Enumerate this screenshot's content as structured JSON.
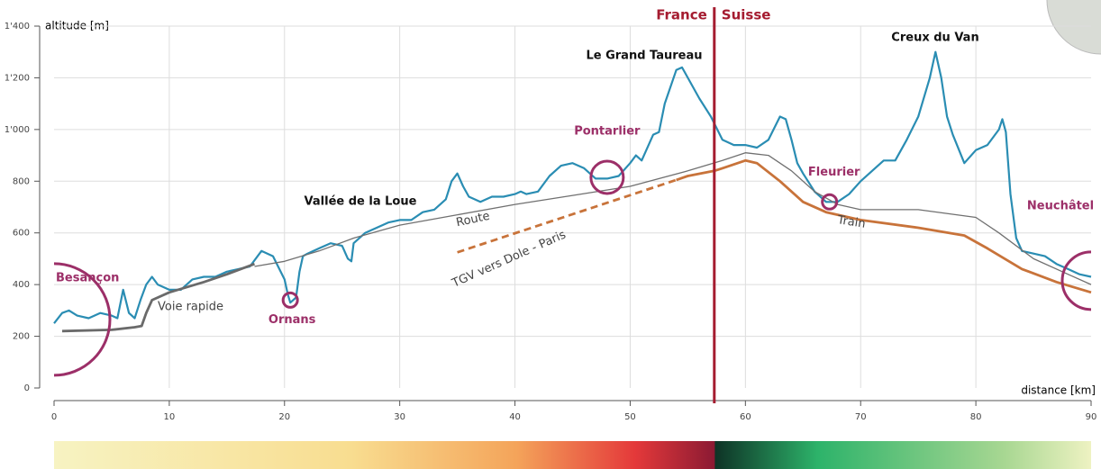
{
  "chart_data": {
    "type": "line",
    "y_label": "altitude [m]",
    "x_label": "distance [km]",
    "xlim": [
      0,
      90
    ],
    "ylim": [
      0,
      1400
    ],
    "xticks": [
      0,
      10,
      20,
      30,
      40,
      50,
      60,
      70,
      80,
      90
    ],
    "yticks": [
      0,
      200,
      400,
      600,
      800,
      {
        "value": 1000,
        "label": "1'000"
      },
      {
        "value": 1200,
        "label": "1'200"
      },
      {
        "value": 1400,
        "label": "1'400"
      }
    ],
    "grid": true,
    "series": [
      {
        "color": "#2a8db3",
        "x": [
          0,
          0.7,
          1.3,
          2,
          3,
          4,
          5,
          5.5,
          6,
          6.5,
          7,
          7.5,
          8,
          8.5,
          9,
          10,
          11,
          12,
          13,
          14,
          15,
          16,
          17,
          18,
          19,
          20,
          20.3,
          20.5,
          21,
          21.3,
          21.6,
          22,
          23,
          24,
          25,
          25.5,
          25.8,
          26,
          27,
          28,
          29,
          30,
          31,
          32,
          33,
          34,
          34.5,
          35,
          35.5,
          36,
          37,
          38,
          39,
          40,
          40.5,
          41,
          42,
          43,
          44,
          45,
          46,
          47,
          48,
          49,
          50,
          50.5,
          51,
          52,
          52.5,
          53,
          54,
          54.5,
          55,
          56,
          57,
          58,
          59,
          60,
          61,
          62,
          63,
          63.5,
          64,
          64.5,
          65,
          66,
          67,
          68,
          69,
          70,
          71,
          72,
          73,
          74,
          75,
          76,
          76.5,
          77,
          77.5,
          78,
          79,
          80,
          81,
          82,
          82.3,
          82.6,
          83,
          83.5,
          84,
          85,
          86,
          87,
          88,
          89,
          90
        ],
        "values": [
          250,
          290,
          300,
          280,
          270,
          290,
          280,
          270,
          380,
          290,
          270,
          340,
          400,
          430,
          400,
          380,
          380,
          420,
          430,
          430,
          450,
          460,
          470,
          530,
          510,
          420,
          360,
          330,
          350,
          450,
          510,
          520,
          540,
          560,
          550,
          500,
          490,
          560,
          600,
          620,
          640,
          650,
          650,
          680,
          690,
          730,
          800,
          830,
          780,
          740,
          720,
          740,
          740,
          750,
          760,
          750,
          760,
          820,
          860,
          870,
          850,
          810,
          810,
          820,
          870,
          900,
          880,
          980,
          990,
          1100,
          1230,
          1240,
          1200,
          1120,
          1050,
          960,
          940,
          940,
          930,
          960,
          1050,
          1040,
          960,
          870,
          830,
          760,
          720,
          720,
          750,
          800,
          840,
          880,
          880,
          960,
          1050,
          1200,
          1300,
          1200,
          1050,
          980,
          870,
          920,
          940,
          1000,
          1040,
          990,
          750,
          580,
          530,
          520,
          510,
          480,
          460,
          440,
          430
        ]
      },
      {
        "name": "Route",
        "color": "#707070",
        "x": [
          17.4,
          20,
          23,
          26,
          30,
          35,
          40,
          45,
          50,
          55,
          58,
          60,
          62,
          64,
          66,
          68,
          70,
          75,
          80,
          82,
          85,
          88,
          90
        ],
        "values": [
          470,
          490,
          530,
          580,
          630,
          670,
          710,
          745,
          780,
          840,
          880,
          910,
          900,
          840,
          760,
          710,
          690,
          690,
          660,
          600,
          500,
          440,
          400
        ]
      },
      {
        "name": "Voie rapide",
        "color": "#6a6a6a",
        "x": [
          0.7,
          5,
          7,
          7.6,
          8,
          8.5,
          10,
          13,
          15,
          17.4
        ],
        "values": [
          220,
          225,
          235,
          240,
          290,
          340,
          370,
          410,
          440,
          480
        ]
      },
      {
        "name": "Train",
        "color": "#c8733a",
        "x": [
          54,
          55,
          57.3,
          58,
          60,
          61,
          63,
          65,
          67,
          70,
          75,
          79,
          81,
          84,
          87,
          90
        ],
        "values": [
          805,
          820,
          840,
          850,
          880,
          870,
          800,
          720,
          680,
          650,
          620,
          590,
          540,
          460,
          410,
          370
        ]
      },
      {
        "name": "TGV vers Dole - Paris",
        "color": "#c8733a",
        "style": "dashed",
        "x": [
          35,
          54
        ],
        "values": [
          525,
          805
        ]
      }
    ],
    "annotations": [
      "Le Grand Taureau",
      "Creux du Van",
      "Vallée de la Loue"
    ],
    "places": [
      {
        "name": "Besançon",
        "x": 0,
        "y": 265
      },
      {
        "name": "Ornans",
        "x": 20.5,
        "y": 340
      },
      {
        "name": "Pontarlier",
        "x": 48,
        "y": 815
      },
      {
        "name": "Fleurier",
        "x": 67.3,
        "y": 720
      },
      {
        "name": "Neuchâtel",
        "x": 90,
        "y": 415
      }
    ],
    "place_color": "#9c2f68",
    "border": {
      "x": 57.3,
      "left": "France",
      "right": "Suisse",
      "color": "#a51c30"
    }
  }
}
